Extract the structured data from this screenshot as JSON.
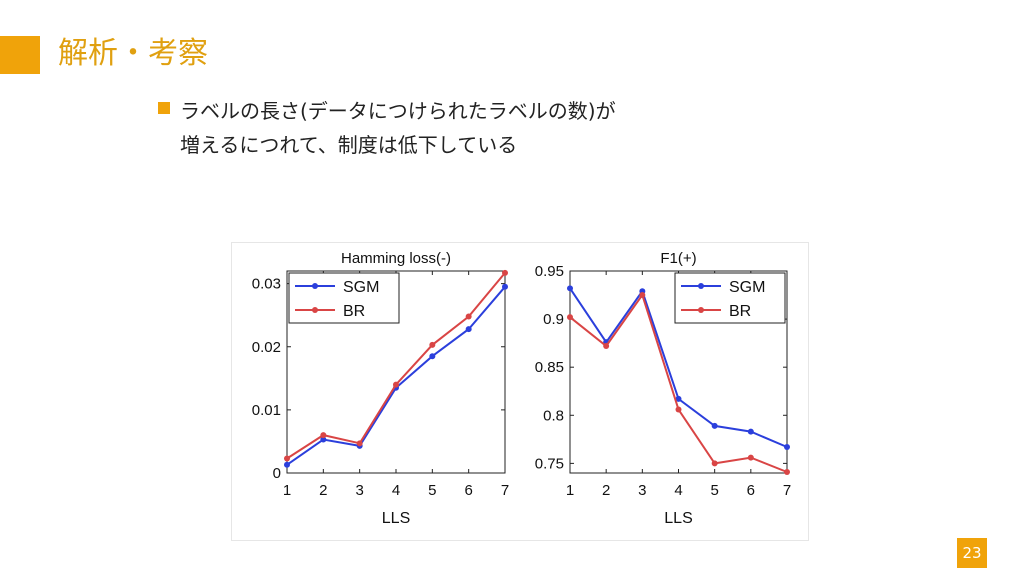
{
  "slide": {
    "title": "解析・考察",
    "bullet_line1": "ラベルの長さ(データにつけられたラベルの数)が",
    "bullet_line2": "増えるにつれて、制度は低下している",
    "page_number": "23",
    "accent_color": "#f0a30a"
  },
  "chart_data": [
    {
      "type": "line",
      "title": "Hamming loss(-)",
      "xlabel": "LLS",
      "ylabel": "",
      "x": [
        1,
        2,
        3,
        4,
        5,
        6,
        7
      ],
      "xlim": [
        1,
        7
      ],
      "ylim": [
        0,
        0.032
      ],
      "yticks": [
        0,
        0.01,
        0.02,
        0.03
      ],
      "ytick_labels": [
        "0",
        "0.01",
        "0.02",
        "0.03"
      ],
      "legend_position": "top-left",
      "series": [
        {
          "name": "SGM",
          "color": "#2b3fdc",
          "values": [
            0.0013,
            0.0053,
            0.0043,
            0.0135,
            0.0185,
            0.0228,
            0.0295
          ]
        },
        {
          "name": "BR",
          "color": "#d94545",
          "values": [
            0.0023,
            0.006,
            0.0047,
            0.014,
            0.0203,
            0.0248,
            0.0317
          ]
        }
      ]
    },
    {
      "type": "line",
      "title": "F1(+)",
      "xlabel": "LLS",
      "ylabel": "",
      "x": [
        1,
        2,
        3,
        4,
        5,
        6,
        7
      ],
      "xlim": [
        1,
        7
      ],
      "ylim": [
        0.74,
        0.95
      ],
      "yticks": [
        0.75,
        0.8,
        0.85,
        0.9,
        0.95
      ],
      "ytick_labels": [
        "0.75",
        "0.8",
        "0.85",
        "0.9",
        "0.95"
      ],
      "legend_position": "top-right",
      "series": [
        {
          "name": "SGM",
          "color": "#2b3fdc",
          "values": [
            0.932,
            0.876,
            0.929,
            0.817,
            0.789,
            0.783,
            0.767
          ]
        },
        {
          "name": "BR",
          "color": "#d94545",
          "values": [
            0.902,
            0.872,
            0.925,
            0.806,
            0.75,
            0.756,
            0.741
          ]
        }
      ]
    }
  ]
}
